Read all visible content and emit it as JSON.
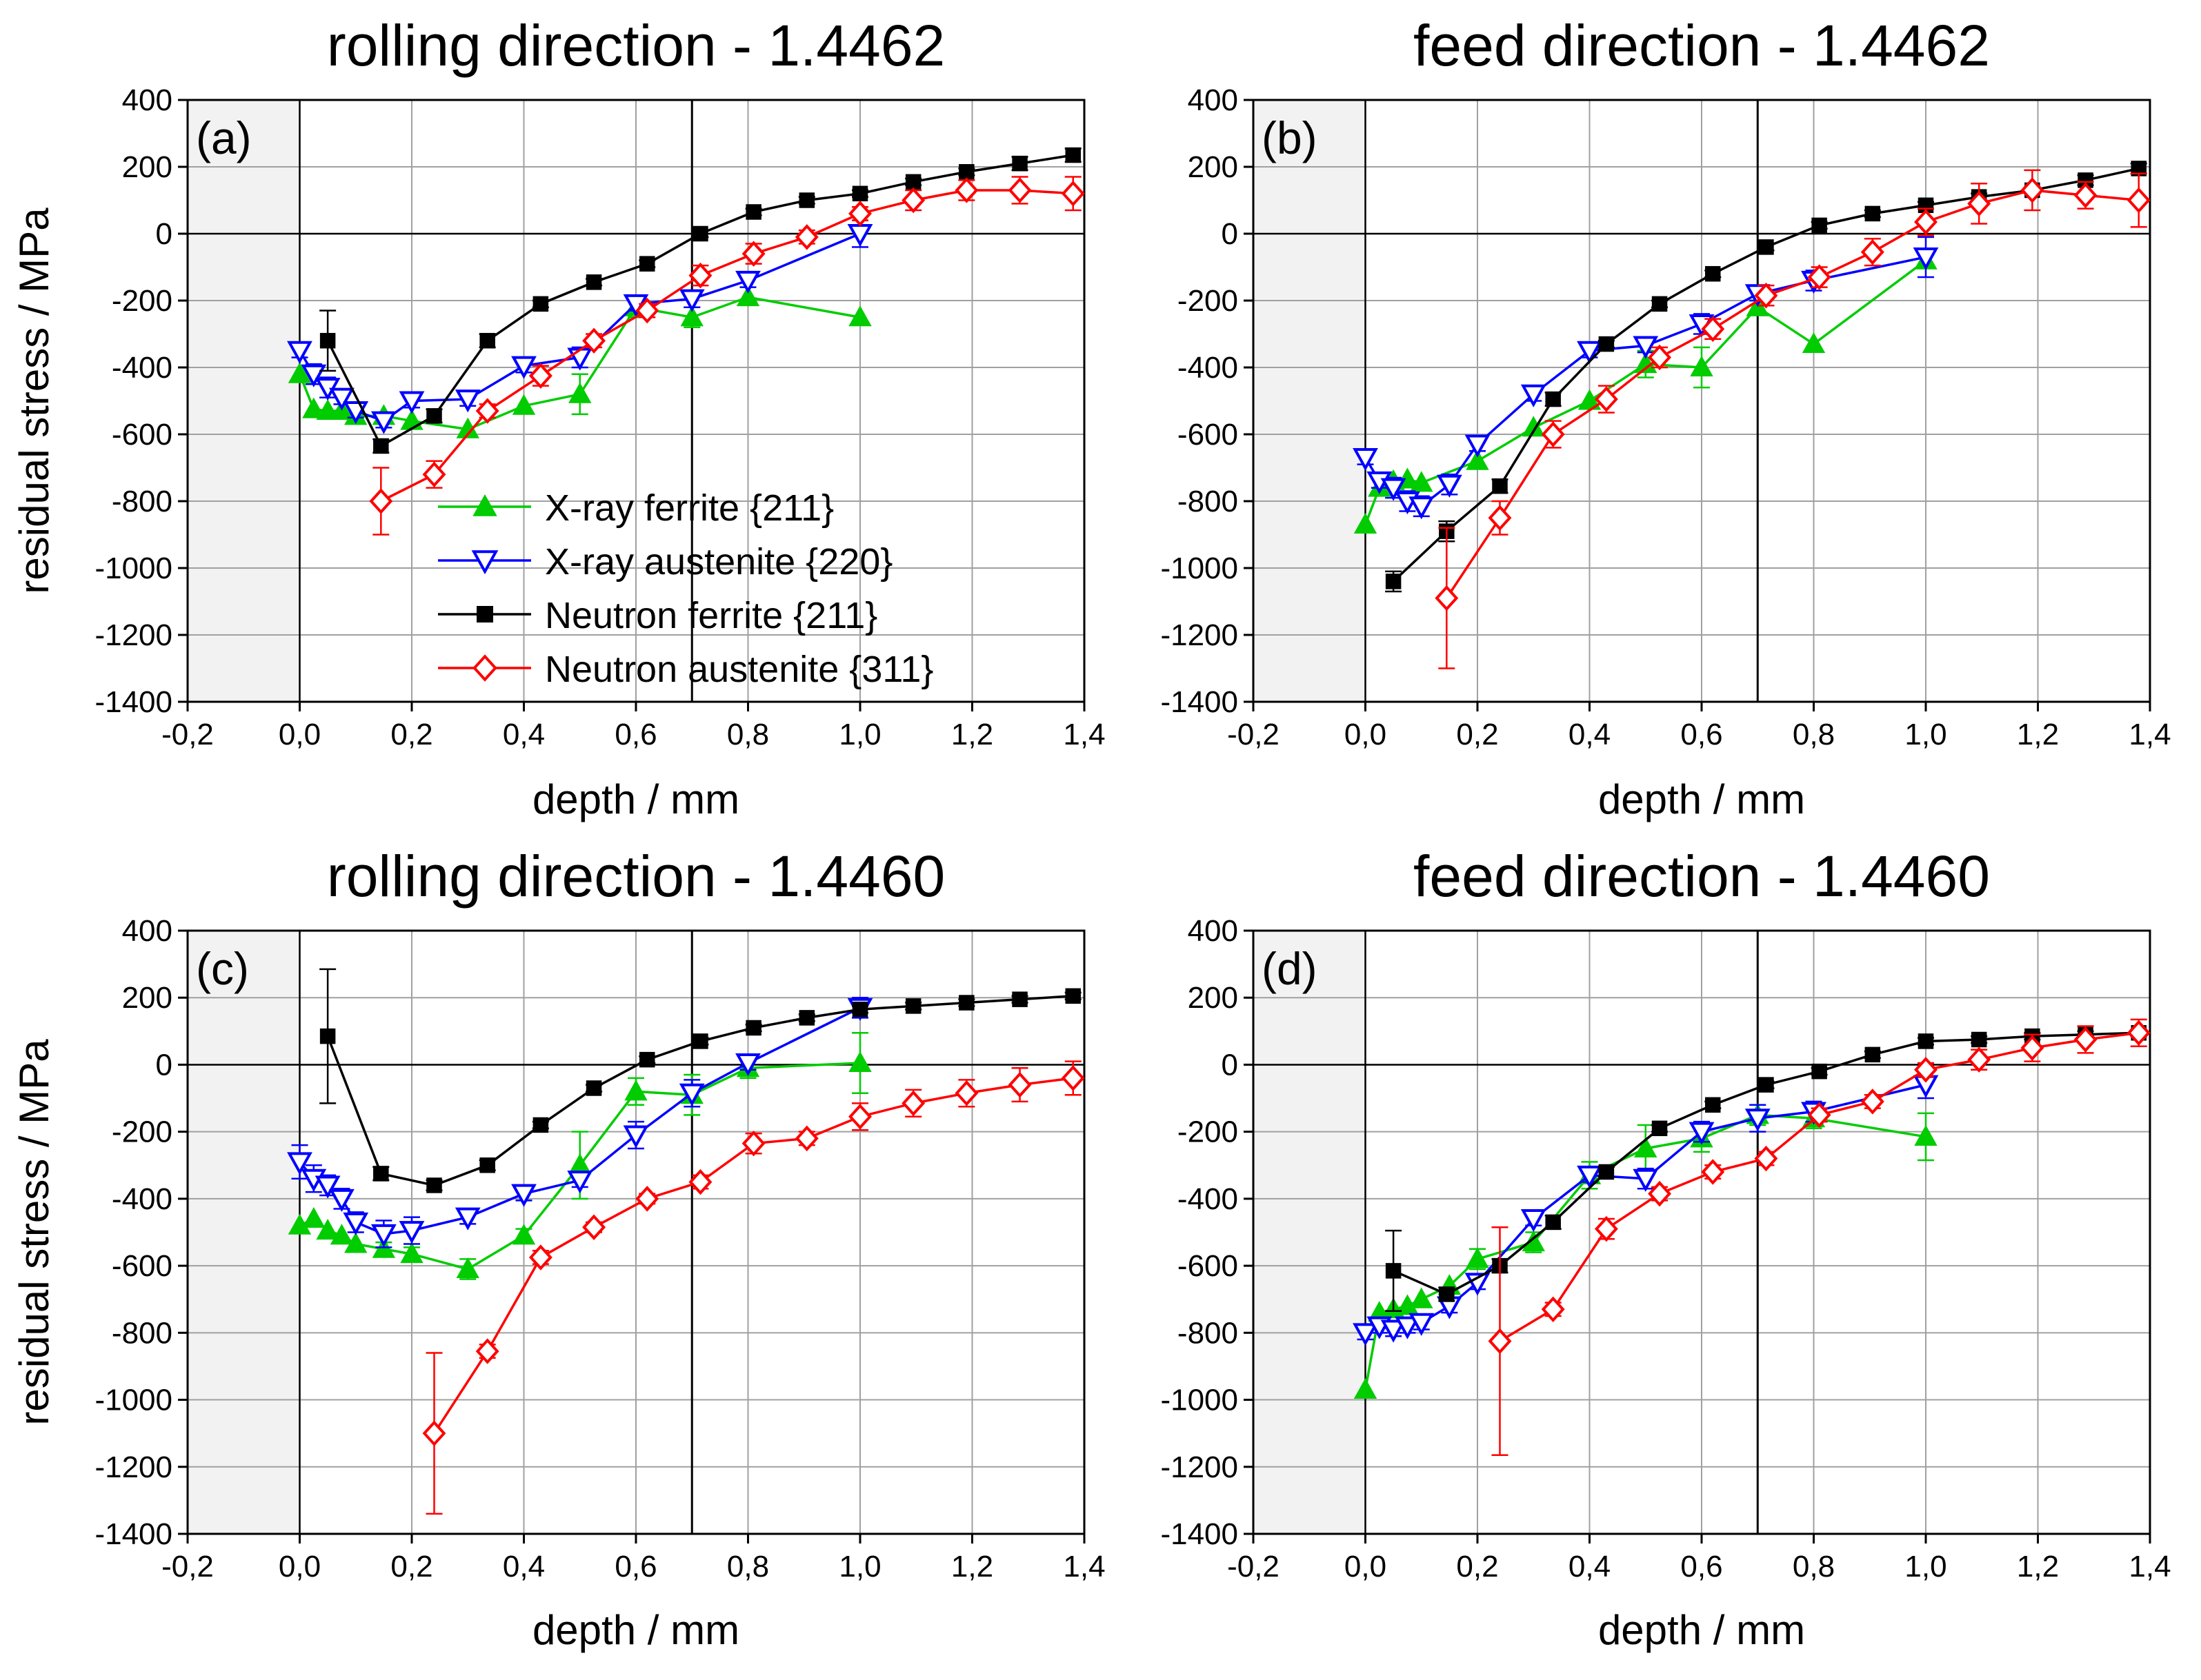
{
  "chart_data": [
    {
      "type": "line",
      "title": "rolling direction - 1.4462",
      "panel_label": "(a)",
      "xlabel": "depth / mm",
      "ylabel": "residual stress / MPa",
      "xlim": [
        -0.2,
        1.4
      ],
      "ylim": [
        -1400,
        400
      ],
      "xticks": [
        "-0,2",
        "0,0",
        "0,2",
        "0,4",
        "0,6",
        "0,8",
        "1,0",
        "1,2",
        "1,4"
      ],
      "yticks": [
        "-1400",
        "-1200",
        "-1000",
        "-800",
        "-600",
        "-400",
        "-200",
        "0",
        "200",
        "400"
      ],
      "vline": 0.7,
      "legend": true,
      "series": [
        {
          "name": "X-ray ferrite {211}",
          "x": [
            0,
            0.025,
            0.05,
            0.075,
            0.1,
            0.15,
            0.2,
            0.3,
            0.4,
            0.5,
            0.6,
            0.7,
            0.8,
            1.0
          ],
          "y": [
            -420,
            -525,
            -530,
            -530,
            -545,
            -545,
            -560,
            -585,
            -515,
            -480,
            -220,
            -250,
            -190,
            -250
          ],
          "err": [
            0,
            0,
            0,
            0,
            0,
            0,
            0,
            0,
            0,
            60,
            30,
            30,
            0,
            0
          ]
        },
        {
          "name": "X-ray austenite {220}",
          "x": [
            0,
            0.025,
            0.05,
            0.075,
            0.1,
            0.15,
            0.2,
            0.3,
            0.4,
            0.5,
            0.6,
            0.7,
            0.8,
            1.0
          ],
          "y": [
            -350,
            -420,
            -460,
            -490,
            -530,
            -560,
            -500,
            -495,
            -395,
            -370,
            -210,
            -195,
            -140,
            0
          ],
          "err": [
            20,
            30,
            30,
            20,
            20,
            20,
            20,
            20,
            20,
            30,
            20,
            25,
            20,
            40
          ]
        },
        {
          "name": "Neutron ferrite {211}",
          "x": [
            0.05,
            0.145,
            0.24,
            0.335,
            0.43,
            0.525,
            0.62,
            0.715,
            0.81,
            0.905,
            1.0,
            1.095,
            1.19,
            1.285,
            1.38
          ],
          "y": [
            -320,
            -635,
            -545,
            -320,
            -210,
            -145,
            -90,
            0,
            65,
            100,
            120,
            155,
            185,
            210,
            235
          ],
          "err": [
            90,
            20,
            20,
            20,
            10,
            10,
            10,
            10,
            10,
            10,
            10,
            10,
            10,
            20,
            20
          ]
        },
        {
          "name": "Neutron austenite {311}",
          "x": [
            0.145,
            0.24,
            0.335,
            0.43,
            0.525,
            0.62,
            0.715,
            0.81,
            0.905,
            1.0,
            1.095,
            1.19,
            1.285,
            1.38
          ],
          "y": [
            -800,
            -720,
            -530,
            -425,
            -320,
            -230,
            -125,
            -60,
            -10,
            60,
            100,
            130,
            130,
            120
          ],
          "err": [
            100,
            40,
            20,
            30,
            20,
            20,
            30,
            30,
            20,
            20,
            30,
            30,
            40,
            50
          ]
        }
      ]
    },
    {
      "type": "line",
      "title": "feed direction - 1.4462",
      "panel_label": "(b)",
      "xlabel": "depth / mm",
      "ylabel": "",
      "xlim": [
        -0.2,
        1.4
      ],
      "ylim": [
        -1400,
        400
      ],
      "xticks": [
        "-0,2",
        "0,0",
        "0,2",
        "0,4",
        "0,6",
        "0,8",
        "1,0",
        "1,2",
        "1,4"
      ],
      "yticks": [
        "-1400",
        "-1200",
        "-1000",
        "-800",
        "-600",
        "-400",
        "-200",
        "0",
        "200",
        "400"
      ],
      "vline": 0.7,
      "legend": false,
      "series": [
        {
          "name": "X-ray ferrite {211}",
          "x": [
            0,
            0.025,
            0.05,
            0.075,
            0.1,
            0.2,
            0.3,
            0.4,
            0.5,
            0.6,
            0.7,
            0.8,
            1.0
          ],
          "y": [
            -870,
            -760,
            -740,
            -735,
            -745,
            -680,
            -580,
            -500,
            -390,
            -400,
            -220,
            -330,
            -80
          ],
          "err": [
            0,
            0,
            0,
            0,
            0,
            0,
            0,
            0,
            40,
            60,
            20,
            0,
            0
          ]
        },
        {
          "name": "X-ray austenite {220}",
          "x": [
            0,
            0.025,
            0.05,
            0.075,
            0.1,
            0.15,
            0.2,
            0.3,
            0.4,
            0.5,
            0.6,
            0.7,
            0.8,
            1.0
          ],
          "y": [
            -670,
            -740,
            -760,
            -800,
            -815,
            -750,
            -630,
            -480,
            -350,
            -335,
            -270,
            -180,
            -140,
            -70
          ],
          "err": [
            20,
            20,
            30,
            30,
            30,
            30,
            20,
            20,
            20,
            20,
            30,
            20,
            30,
            60
          ]
        },
        {
          "name": "Neutron ferrite {211}",
          "x": [
            0.05,
            0.145,
            0.24,
            0.335,
            0.43,
            0.525,
            0.62,
            0.715,
            0.81,
            0.905,
            1.0,
            1.095,
            1.19,
            1.285,
            1.38
          ],
          "y": [
            -1040,
            -890,
            -755,
            -495,
            -330,
            -210,
            -120,
            -40,
            25,
            60,
            85,
            110,
            130,
            160,
            195
          ],
          "err": [
            30,
            30,
            20,
            20,
            10,
            10,
            10,
            10,
            10,
            10,
            10,
            10,
            10,
            15,
            15
          ]
        },
        {
          "name": "Neutron austenite {311}",
          "x": [
            0.145,
            0.24,
            0.335,
            0.43,
            0.525,
            0.62,
            0.715,
            0.81,
            0.905,
            1.0,
            1.095,
            1.19,
            1.285,
            1.38
          ],
          "y": [
            -1090,
            -850,
            -600,
            -495,
            -370,
            -285,
            -185,
            -130,
            -55,
            35,
            90,
            130,
            115,
            100
          ],
          "err": [
            210,
            50,
            40,
            40,
            30,
            30,
            30,
            30,
            40,
            40,
            60,
            60,
            40,
            80
          ]
        }
      ]
    },
    {
      "type": "line",
      "title": "rolling direction - 1.4460",
      "panel_label": "(c)",
      "xlabel": "depth / mm",
      "ylabel": "residual stress / MPa",
      "xlim": [
        -0.2,
        1.4
      ],
      "ylim": [
        -1400,
        400
      ],
      "xticks": [
        "-0,2",
        "0,0",
        "0,2",
        "0,4",
        "0,6",
        "0,8",
        "1,0",
        "1,2",
        "1,4"
      ],
      "yticks": [
        "-1400",
        "-1200",
        "-1000",
        "-800",
        "-600",
        "-400",
        "-200",
        "0",
        "200",
        "400"
      ],
      "vline": 0.7,
      "legend": false,
      "series": [
        {
          "name": "X-ray ferrite {211}",
          "x": [
            0,
            0.025,
            0.05,
            0.075,
            0.1,
            0.15,
            0.2,
            0.3,
            0.4,
            0.5,
            0.6,
            0.7,
            0.8,
            1.0
          ],
          "y": [
            -480,
            -460,
            -495,
            -510,
            -535,
            -550,
            -565,
            -610,
            -510,
            -300,
            -80,
            -90,
            -10,
            5
          ],
          "err": [
            0,
            0,
            0,
            0,
            0,
            20,
            20,
            30,
            20,
            100,
            40,
            60,
            30,
            90
          ]
        },
        {
          "name": "X-ray austenite {220}",
          "x": [
            0,
            0.025,
            0.05,
            0.075,
            0.1,
            0.15,
            0.2,
            0.3,
            0.4,
            0.5,
            0.6,
            0.7,
            0.8,
            1.0
          ],
          "y": [
            -290,
            -340,
            -360,
            -400,
            -470,
            -505,
            -495,
            -455,
            -385,
            -345,
            -210,
            -85,
            5,
            170
          ],
          "err": [
            50,
            40,
            30,
            30,
            30,
            40,
            40,
            20,
            20,
            20,
            40,
            40,
            20,
            30
          ]
        },
        {
          "name": "Neutron ferrite {211}",
          "x": [
            0.05,
            0.145,
            0.24,
            0.335,
            0.43,
            0.525,
            0.62,
            0.715,
            0.81,
            0.905,
            1.0,
            1.095,
            1.19,
            1.285,
            1.38
          ],
          "y": [
            85,
            -325,
            -360,
            -300,
            -180,
            -70,
            15,
            70,
            110,
            140,
            165,
            175,
            185,
            195,
            205
          ],
          "err": [
            200,
            20,
            15,
            15,
            10,
            10,
            10,
            10,
            10,
            10,
            10,
            10,
            10,
            10,
            10
          ]
        },
        {
          "name": "Neutron austenite {311}",
          "x": [
            0.24,
            0.335,
            0.43,
            0.525,
            0.62,
            0.715,
            0.81,
            0.905,
            1.0,
            1.095,
            1.19,
            1.285,
            1.38
          ],
          "y": [
            -1100,
            -855,
            -575,
            -485,
            -400,
            -350,
            -235,
            -220,
            -155,
            -115,
            -85,
            -60,
            -40
          ],
          "err": [
            240,
            20,
            20,
            15,
            15,
            20,
            30,
            20,
            40,
            40,
            40,
            50,
            50
          ]
        }
      ]
    },
    {
      "type": "line",
      "title": "feed direction - 1.4460",
      "panel_label": "(d)",
      "xlabel": "depth / mm",
      "ylabel": "",
      "xlim": [
        -0.2,
        1.4
      ],
      "ylim": [
        -1400,
        400
      ],
      "xticks": [
        "-0,2",
        "0,0",
        "0,2",
        "0,4",
        "0,6",
        "0,8",
        "1,0",
        "1,2",
        "1,4"
      ],
      "yticks": [
        "-1400",
        "-1200",
        "-1000",
        "-800",
        "-600",
        "-400",
        "-200",
        "0",
        "200",
        "400"
      ],
      "vline": 0.7,
      "legend": false,
      "series": [
        {
          "name": "X-ray ferrite {211}",
          "x": [
            0,
            0.025,
            0.05,
            0.075,
            0.1,
            0.15,
            0.2,
            0.3,
            0.4,
            0.5,
            0.6,
            0.7,
            0.8,
            1.0
          ],
          "y": [
            -970,
            -740,
            -730,
            -720,
            -700,
            -660,
            -580,
            -530,
            -330,
            -250,
            -220,
            -150,
            -160,
            -215
          ],
          "err": [
            0,
            0,
            0,
            0,
            0,
            0,
            30,
            30,
            40,
            70,
            40,
            30,
            30,
            70
          ]
        },
        {
          "name": "X-ray austenite {220}",
          "x": [
            0,
            0.025,
            0.05,
            0.075,
            0.1,
            0.15,
            0.2,
            0.3,
            0.4,
            0.5,
            0.6,
            0.7,
            0.8,
            1.0
          ],
          "y": [
            -800,
            -780,
            -790,
            -780,
            -770,
            -720,
            -650,
            -460,
            -330,
            -340,
            -200,
            -160,
            -140,
            -60
          ],
          "err": [
            20,
            20,
            20,
            20,
            20,
            20,
            20,
            20,
            20,
            30,
            30,
            40,
            30,
            40
          ]
        },
        {
          "name": "Neutron ferrite {211}",
          "x": [
            0.05,
            0.145,
            0.24,
            0.335,
            0.43,
            0.525,
            0.62,
            0.715,
            0.81,
            0.905,
            1.0,
            1.095,
            1.19,
            1.285,
            1.38
          ],
          "y": [
            -615,
            -685,
            -600,
            -470,
            -320,
            -190,
            -120,
            -60,
            -20,
            30,
            70,
            75,
            85,
            90,
            95
          ],
          "err": [
            120,
            20,
            20,
            20,
            15,
            10,
            10,
            10,
            10,
            10,
            10,
            10,
            10,
            10,
            10
          ]
        },
        {
          "name": "Neutron austenite {311}",
          "x": [
            0.24,
            0.335,
            0.43,
            0.525,
            0.62,
            0.715,
            0.81,
            0.905,
            1.0,
            1.095,
            1.19,
            1.285,
            1.38
          ],
          "y": [
            -825,
            -730,
            -490,
            -385,
            -320,
            -280,
            -150,
            -110,
            -15,
            15,
            50,
            75,
            95
          ],
          "err": [
            340,
            20,
            30,
            20,
            20,
            20,
            20,
            20,
            20,
            30,
            40,
            40,
            40
          ]
        }
      ]
    }
  ],
  "series_style": [
    {
      "name": "X-ray ferrite {211}",
      "color": "#00cc00",
      "marker": "triangle-up-filled"
    },
    {
      "name": "X-ray austenite {220}",
      "color": "#0000ff",
      "marker": "triangle-down-open"
    },
    {
      "name": "Neutron ferrite {211}",
      "color": "#000000",
      "marker": "square-filled"
    },
    {
      "name": "Neutron austenite {311}",
      "color": "#ff0000",
      "marker": "diamond-open"
    }
  ],
  "colors": {
    "shade": "#f2f2f2",
    "grid": "#a0a0a0",
    "axis": "#000000"
  }
}
